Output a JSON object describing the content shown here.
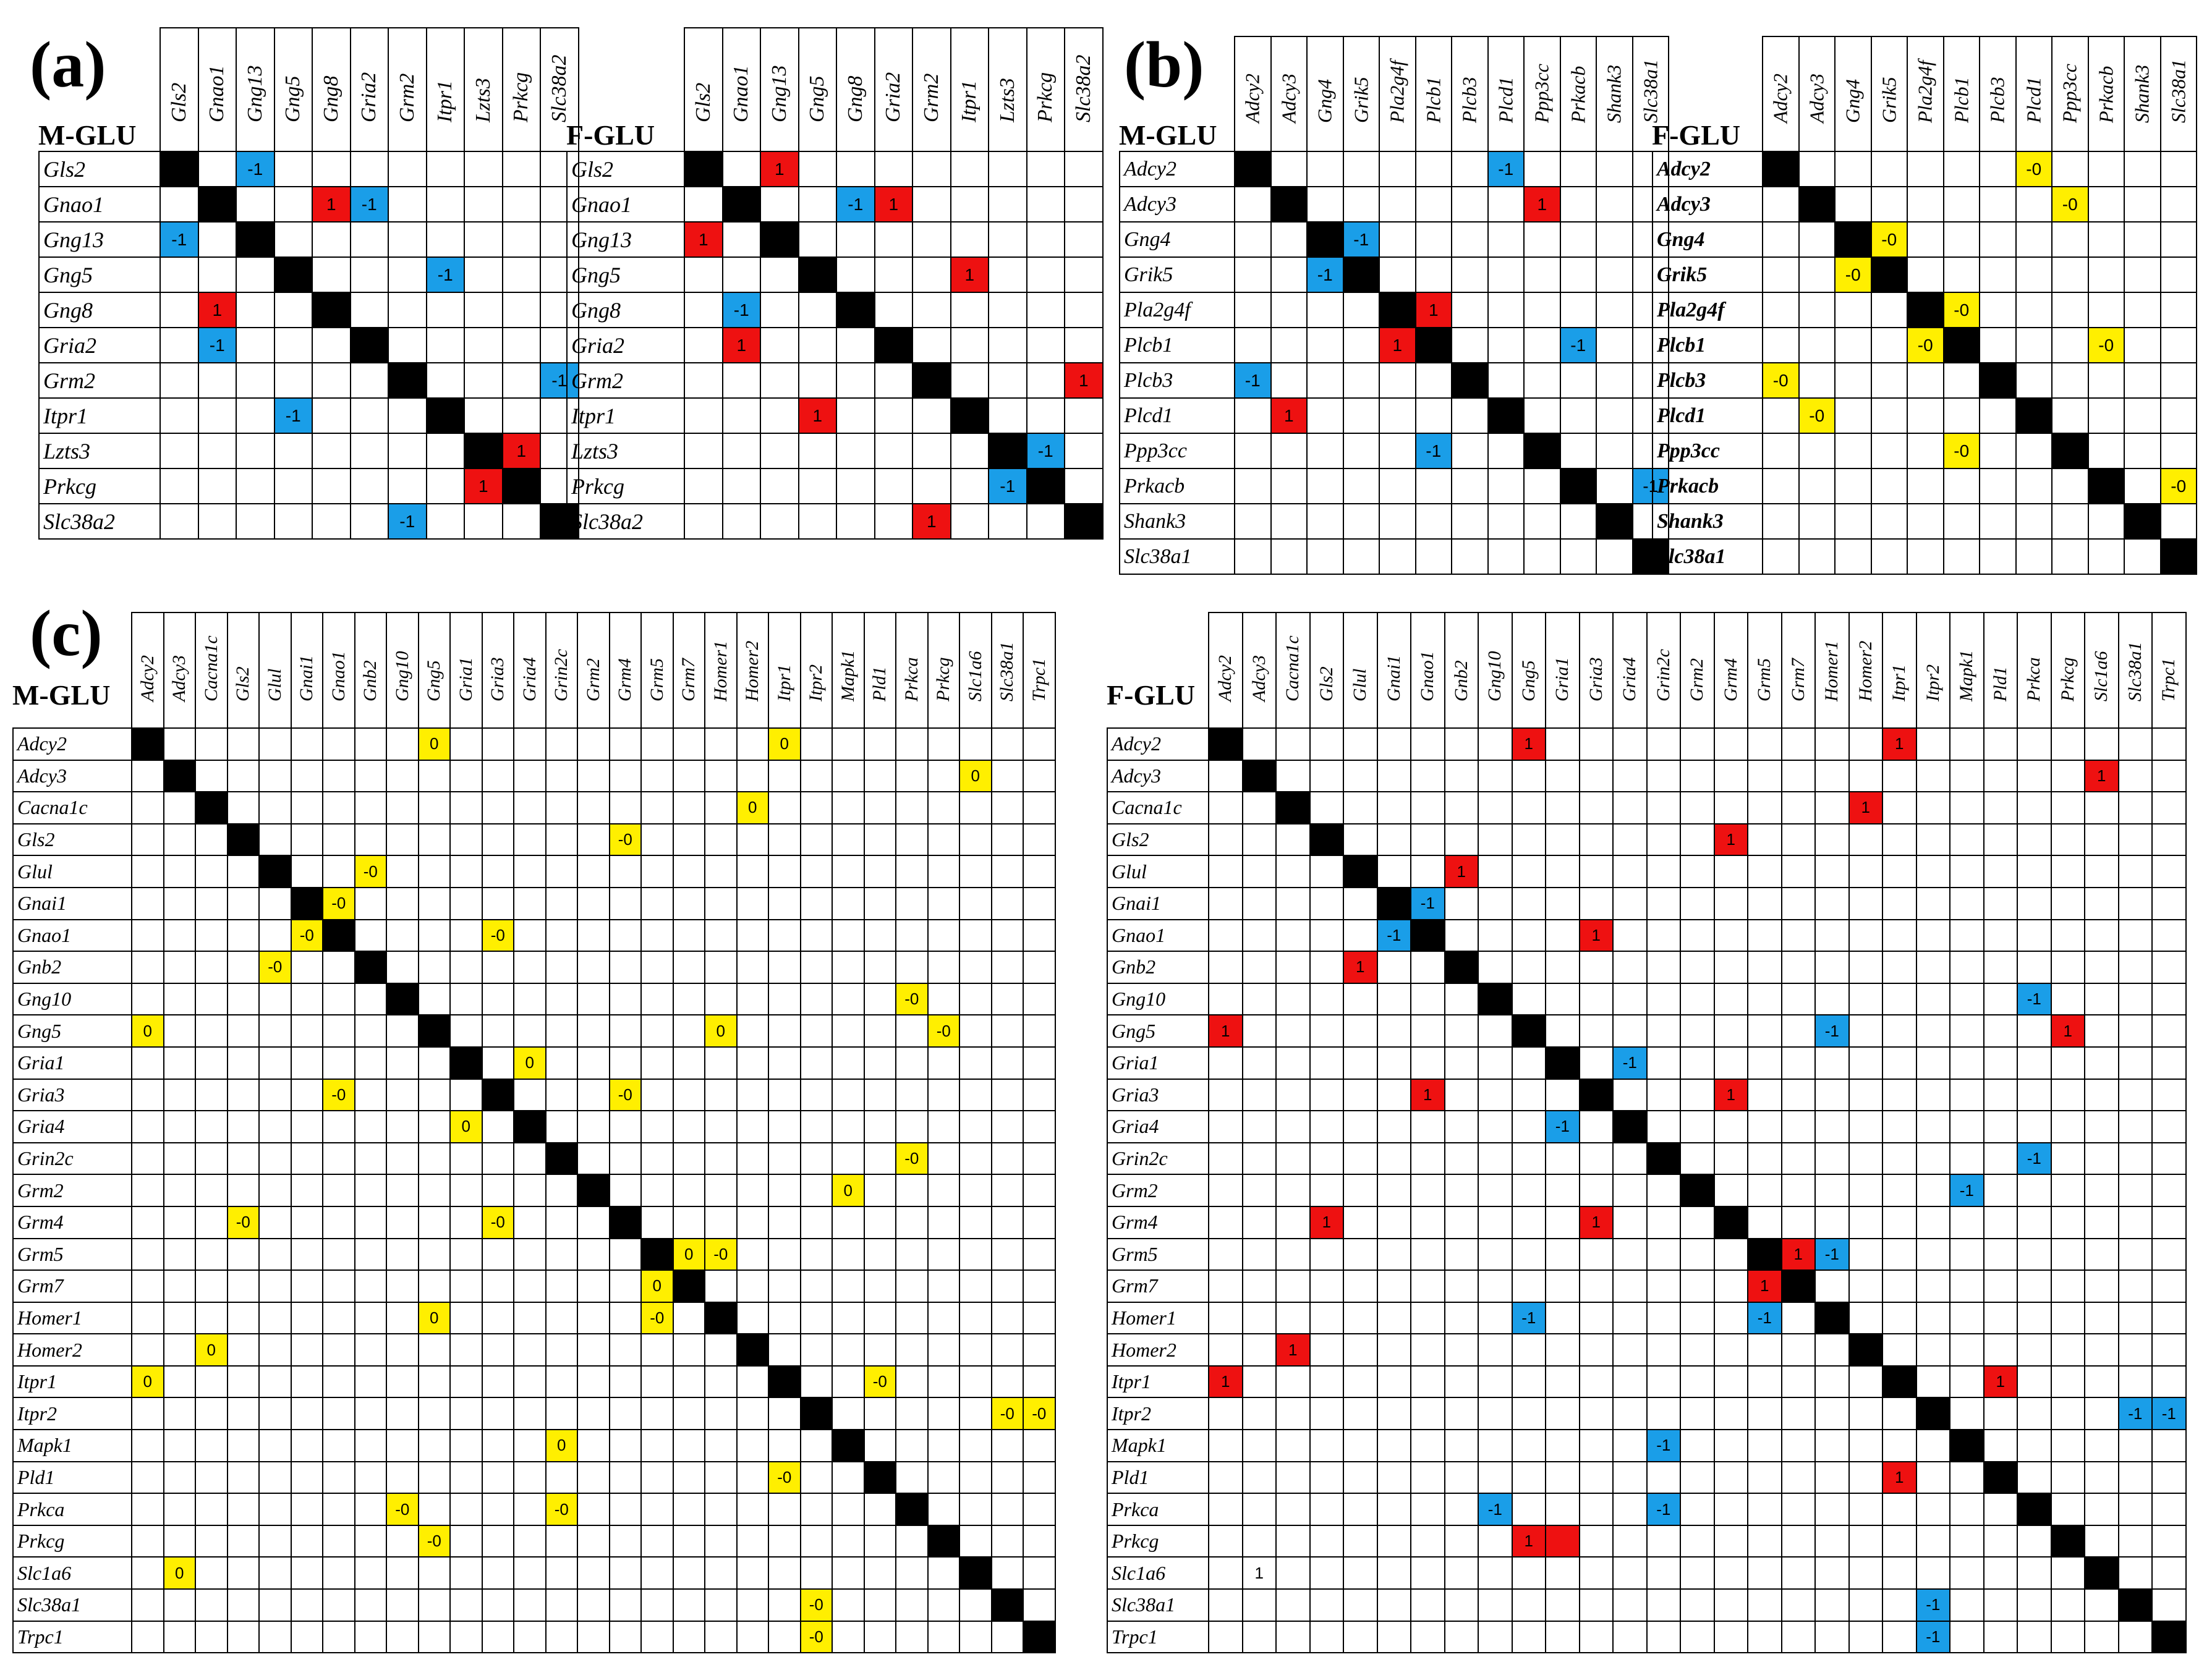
{
  "figure": {
    "panels": [
      {
        "label": "(a)",
        "genes": [
          "Gls2",
          "Gnao1",
          "Gng13",
          "Gng5",
          "Gng8",
          "Gria2",
          "Grm2",
          "Itpr1",
          "Lzts3",
          "Prkcg",
          "Slc38a2"
        ],
        "matrices": [
          {
            "title": "M-GLU",
            "row_bold": false,
            "cells": [
              [
                0,
                2,
                "-1",
                "neg"
              ],
              [
                1,
                4,
                "1",
                "pos"
              ],
              [
                1,
                5,
                "-1",
                "neg"
              ],
              [
                2,
                0,
                "-1",
                "neg"
              ],
              [
                3,
                7,
                "-1",
                "neg"
              ],
              [
                4,
                1,
                "1",
                "pos"
              ],
              [
                5,
                1,
                "-1",
                "neg"
              ],
              [
                6,
                10,
                "-1",
                "neg"
              ],
              [
                7,
                3,
                "-1",
                "neg"
              ],
              [
                8,
                9,
                "1",
                "pos"
              ],
              [
                9,
                8,
                "1",
                "pos"
              ],
              [
                10,
                6,
                "-1",
                "neg"
              ]
            ]
          },
          {
            "title": "F-GLU",
            "row_bold": false,
            "cells": [
              [
                0,
                2,
                "1",
                "pos"
              ],
              [
                1,
                4,
                "-1",
                "neg"
              ],
              [
                1,
                5,
                "1",
                "pos"
              ],
              [
                2,
                0,
                "1",
                "pos"
              ],
              [
                3,
                7,
                "1",
                "pos"
              ],
              [
                4,
                1,
                "-1",
                "neg"
              ],
              [
                5,
                1,
                "1",
                "pos"
              ],
              [
                6,
                10,
                "1",
                "pos"
              ],
              [
                7,
                3,
                "1",
                "pos"
              ],
              [
                8,
                9,
                "-1",
                "neg"
              ],
              [
                9,
                8,
                "-1",
                "neg"
              ],
              [
                10,
                6,
                "1",
                "pos"
              ]
            ]
          }
        ]
      },
      {
        "label": "(b)",
        "genes": [
          "Adcy2",
          "Adcy3",
          "Gng4",
          "Grik5",
          "Pla2g4f",
          "Plcb1",
          "Plcb3",
          "Plcd1",
          "Ppp3cc",
          "Prkacb",
          "Shank3",
          "Slc38a1"
        ],
        "matrices": [
          {
            "title": "M-GLU",
            "row_bold": false,
            "cells": [
              [
                0,
                7,
                "-1",
                "neg"
              ],
              [
                1,
                8,
                "1",
                "pos"
              ],
              [
                2,
                3,
                "-1",
                "neg"
              ],
              [
                3,
                2,
                "-1",
                "neg"
              ],
              [
                4,
                5,
                "1",
                "pos"
              ],
              [
                5,
                4,
                "1",
                "pos"
              ],
              [
                5,
                9,
                "-1",
                "neg"
              ],
              [
                6,
                0,
                "-1",
                "neg"
              ],
              [
                7,
                1,
                "1",
                "pos"
              ],
              [
                8,
                5,
                "-1",
                "neg"
              ],
              [
                9,
                11,
                "-1",
                "neg"
              ],
              [
                10,
                10,
                "-1",
                "neg"
              ]
            ]
          },
          {
            "title": "F-GLU",
            "row_bold": true,
            "cells": [
              [
                0,
                7,
                "-0",
                "zero"
              ],
              [
                1,
                8,
                "-0",
                "zero"
              ],
              [
                2,
                3,
                "-0",
                "zero"
              ],
              [
                3,
                2,
                "-0",
                "zero"
              ],
              [
                4,
                5,
                "-0",
                "zero"
              ],
              [
                5,
                4,
                "-0",
                "zero"
              ],
              [
                5,
                9,
                "-0",
                "zero"
              ],
              [
                6,
                0,
                "-0",
                "zero"
              ],
              [
                7,
                1,
                "-0",
                "zero"
              ],
              [
                8,
                5,
                "-0",
                "zero"
              ],
              [
                9,
                11,
                "-0",
                "zero"
              ],
              [
                10,
                10,
                "-0",
                "zero"
              ]
            ]
          }
        ]
      },
      {
        "label": "(c)",
        "genes": [
          "Adcy2",
          "Adcy3",
          "Cacna1c",
          "Gls2",
          "Glul",
          "Gnai1",
          "Gnao1",
          "Gnb2",
          "Gng10",
          "Gng5",
          "Gria1",
          "Gria3",
          "Gria4",
          "Grin2c",
          "Grm2",
          "Grm4",
          "Grm5",
          "Grm7",
          "Homer1",
          "Homer2",
          "Itpr1",
          "Itpr2",
          "Mapk1",
          "Pld1",
          "Prkca",
          "Prkcg",
          "Slc1a6",
          "Slc38a1",
          "Trpc1"
        ],
        "matrices": [
          {
            "title": "M-GLU",
            "row_bold": false,
            "cells": [
              [
                0,
                9,
                "0",
                "zero"
              ],
              [
                0,
                20,
                "0",
                "zero"
              ],
              [
                1,
                26,
                "0",
                "zero"
              ],
              [
                2,
                19,
                "0",
                "zero"
              ],
              [
                3,
                15,
                "-0",
                "zero"
              ],
              [
                4,
                7,
                "-0",
                "zero"
              ],
              [
                5,
                6,
                "-0",
                "zero"
              ],
              [
                6,
                5,
                "-0",
                "zero"
              ],
              [
                6,
                11,
                "-0",
                "zero"
              ],
              [
                7,
                4,
                "-0",
                "zero"
              ],
              [
                8,
                24,
                "-0",
                "zero"
              ],
              [
                9,
                0,
                "0",
                "zero"
              ],
              [
                9,
                18,
                "0",
                "zero"
              ],
              [
                9,
                25,
                "-0",
                "zero"
              ],
              [
                10,
                12,
                "0",
                "zero"
              ],
              [
                11,
                6,
                "-0",
                "zero"
              ],
              [
                11,
                15,
                "-0",
                "zero"
              ],
              [
                12,
                10,
                "0",
                "zero"
              ],
              [
                13,
                24,
                "-0",
                "zero"
              ],
              [
                14,
                22,
                "0",
                "zero"
              ],
              [
                15,
                3,
                "-0",
                "zero"
              ],
              [
                15,
                11,
                "-0",
                "zero"
              ],
              [
                16,
                17,
                "0",
                "zero"
              ],
              [
                16,
                18,
                "-0",
                "zero"
              ],
              [
                17,
                16,
                "0",
                "zero"
              ],
              [
                18,
                9,
                "0",
                "zero"
              ],
              [
                18,
                16,
                "-0",
                "zero"
              ],
              [
                19,
                2,
                "0",
                "zero"
              ],
              [
                20,
                0,
                "0",
                "zero"
              ],
              [
                20,
                23,
                "-0",
                "zero"
              ],
              [
                21,
                27,
                "-0",
                "zero"
              ],
              [
                21,
                28,
                "-0",
                "zero"
              ],
              [
                22,
                13,
                "0",
                "zero"
              ],
              [
                23,
                20,
                "-0",
                "zero"
              ],
              [
                24,
                8,
                "-0",
                "zero"
              ],
              [
                24,
                13,
                "-0",
                "zero"
              ],
              [
                25,
                9,
                "-0",
                "zero"
              ],
              [
                26,
                1,
                "0",
                "zero"
              ],
              [
                27,
                21,
                "-0",
                "zero"
              ],
              [
                28,
                21,
                "-0",
                "zero"
              ]
            ]
          },
          {
            "title": "F-GLU",
            "row_bold": false,
            "cells": [
              [
                0,
                9,
                "1",
                "pos"
              ],
              [
                0,
                20,
                "1",
                "pos"
              ],
              [
                1,
                26,
                "1",
                "pos"
              ],
              [
                2,
                19,
                "1",
                "pos"
              ],
              [
                3,
                15,
                "1",
                "pos"
              ],
              [
                4,
                7,
                "1",
                "pos"
              ],
              [
                5,
                6,
                "-1",
                "neg"
              ],
              [
                6,
                5,
                "-1",
                "neg"
              ],
              [
                6,
                11,
                "1",
                "pos"
              ],
              [
                7,
                4,
                "1",
                "pos"
              ],
              [
                8,
                24,
                "-1",
                "neg"
              ],
              [
                9,
                0,
                "1",
                "pos"
              ],
              [
                9,
                18,
                "-1",
                "neg"
              ],
              [
                9,
                25,
                "1",
                "pos"
              ],
              [
                10,
                12,
                "-1",
                "neg"
              ],
              [
                11,
                6,
                "1",
                "pos"
              ],
              [
                11,
                15,
                "1",
                "pos"
              ],
              [
                12,
                10,
                "-1",
                "neg"
              ],
              [
                13,
                24,
                "-1",
                "neg"
              ],
              [
                14,
                22,
                "-1",
                "neg"
              ],
              [
                15,
                3,
                "1",
                "pos"
              ],
              [
                15,
                11,
                "1",
                "pos"
              ],
              [
                16,
                17,
                "1",
                "pos"
              ],
              [
                16,
                18,
                "-1",
                "neg"
              ],
              [
                17,
                16,
                "1",
                "pos"
              ],
              [
                18,
                9,
                "-1",
                "neg"
              ],
              [
                18,
                16,
                "-1",
                "neg"
              ],
              [
                19,
                2,
                "1",
                "pos"
              ],
              [
                20,
                0,
                "1",
                "pos"
              ],
              [
                20,
                23,
                "1",
                "pos"
              ],
              [
                21,
                27,
                "-1",
                "neg"
              ],
              [
                21,
                28,
                "-1",
                "neg"
              ],
              [
                22,
                13,
                "-1",
                "neg"
              ],
              [
                23,
                20,
                "1",
                "pos"
              ],
              [
                24,
                8,
                "-1",
                "neg"
              ],
              [
                24,
                13,
                "-1",
                "neg"
              ],
              [
                25,
                9,
                "1",
                "pos"
              ],
              [
                25,
                10,
                "",
                "pos"
              ],
              [
                26,
                1,
                "1",
                "plain"
              ],
              [
                27,
                21,
                "-1",
                "neg"
              ],
              [
                28,
                21,
                "-1",
                "neg"
              ]
            ]
          }
        ]
      }
    ]
  },
  "colors": {
    "positive": "#ee1111",
    "negative": "#1a9ee8",
    "zero": "#ffef00",
    "diagonal": "#000000"
  }
}
